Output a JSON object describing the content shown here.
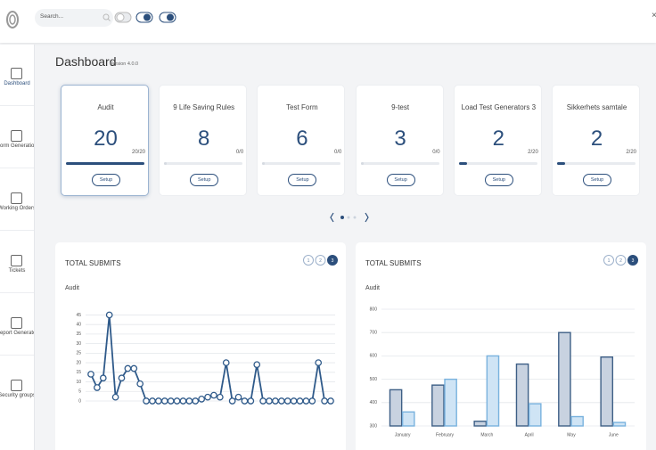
{
  "topbar": {
    "search_placeholder": "Search..."
  },
  "sidebar": {
    "items": [
      "Dashboard",
      "Form Generation",
      "Working Orders",
      "Tickets",
      "Report Generator",
      "Security groups"
    ]
  },
  "header": {
    "title": "Dashboard",
    "version": "Version 4.0.0"
  },
  "cards": [
    {
      "title": "Audit",
      "value": 20,
      "progress": "20/20",
      "button": "Setup"
    },
    {
      "title": "9 Life Saving Rules",
      "value": 8,
      "progress": "0/0",
      "button": "Setup"
    },
    {
      "title": "Test Form",
      "value": 6,
      "progress": "0/0",
      "button": "Setup"
    },
    {
      "title": "9-test",
      "value": 3,
      "progress": "0/0",
      "button": "Setup"
    },
    {
      "title": "Load Test Generators 3",
      "value": 2,
      "progress": "2/20",
      "button": "Setup"
    },
    {
      "title": "Sikkerhets samtale",
      "value": 2,
      "progress": "2/20",
      "button": "Setup"
    }
  ],
  "chart_data": [
    {
      "type": "line",
      "title": "TOTAL SUBMITS",
      "subtitle": "Audit",
      "pages": [
        "1",
        "2",
        "3"
      ],
      "categories": [
        null,
        null,
        null,
        null,
        null,
        null,
        null,
        null,
        null,
        null,
        null,
        null,
        null,
        null,
        null,
        null,
        null,
        null,
        null,
        null,
        null,
        null,
        null,
        null,
        null,
        null,
        null,
        null,
        null,
        null,
        null,
        null,
        null,
        null,
        null,
        null,
        null,
        null,
        null,
        null
      ],
      "values": [
        14,
        7,
        12,
        45,
        2,
        12,
        17,
        17,
        9,
        0,
        0,
        0,
        0,
        0,
        0,
        0,
        0,
        0,
        1,
        2,
        3,
        2,
        20,
        0,
        2,
        0,
        0,
        19,
        0,
        0,
        0,
        0,
        0,
        0,
        0,
        0,
        0,
        20,
        0,
        0
      ],
      "color": "#2f5a8a",
      "ylim": [
        0,
        48
      ],
      "yticks": [
        0,
        5,
        10,
        15,
        20,
        25,
        30,
        35,
        40,
        45
      ],
      "grid": true
    },
    {
      "type": "bar",
      "title": "TOTAL SUBMITS",
      "subtitle": "Audit",
      "pages": [
        "1",
        "2",
        "3"
      ],
      "categories": [
        "January",
        "February",
        "March",
        "April",
        "May",
        "June"
      ],
      "series": [
        {
          "color": "#c8d2e0",
          "edge_color": "#3e5f86",
          "values": [
            455,
            475,
            320,
            565,
            700,
            595
          ]
        },
        {
          "color": "#cfe4f5",
          "edge_color": "#79b2de",
          "values": [
            360,
            500,
            600,
            395,
            340,
            315
          ]
        }
      ],
      "ylim": [
        300,
        800
      ],
      "yticks": [
        300,
        400,
        500,
        600,
        700,
        800
      ],
      "grid": true
    }
  ]
}
